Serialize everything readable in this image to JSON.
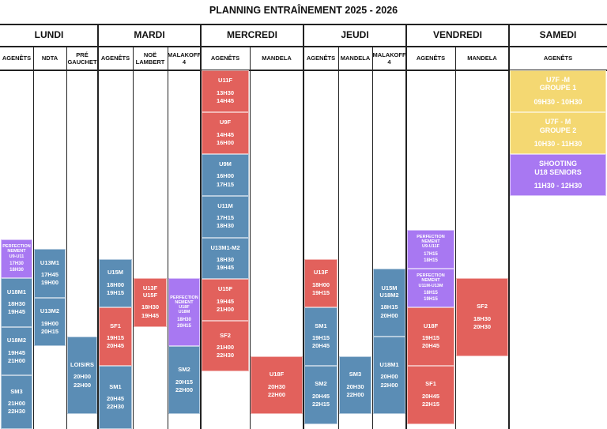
{
  "title": "PLANNING ENTRAÎNEMENT 2025 - 2026",
  "days": [
    "LUNDI",
    "MARDI",
    "MERCREDI",
    "JEUDI",
    "VENDREDI",
    "SAMEDI"
  ],
  "columns": [
    "AGENÊTS",
    "NDTA",
    "PRÉ GAUCHET",
    "AGENÊTS",
    "NOË LAMBERT",
    "MALAKOFF 4",
    "AGENÊTS",
    "MANDELA",
    "AGENÊTS",
    "MANDELA",
    "MALAKOFF 4",
    "AGENÊTS",
    "MANDELA",
    "AGENÊTS"
  ],
  "colors": {
    "blue": "#5b8db5",
    "red": "#e2615c",
    "purple": "#a878f2",
    "yellow": "#f4d872"
  },
  "sessions": [
    {
      "col": 0,
      "color": "purple",
      "label": "PERFECTION\nNEMENT\nU9-U11",
      "times": "17H30\n18H30",
      "start": "17:30",
      "end": "18:30"
    },
    {
      "col": 0,
      "color": "blue",
      "label": "U18M1",
      "times": "18H30\n19H45",
      "start": "18:30",
      "end": "19:45"
    },
    {
      "col": 0,
      "color": "blue",
      "label": "U18M2",
      "times": "19H45\n21H00",
      "start": "19:45",
      "end": "21:00"
    },
    {
      "col": 0,
      "color": "blue",
      "label": "SM3",
      "times": "21H00\n22H30",
      "start": "21:00",
      "end": "22:30"
    },
    {
      "col": 1,
      "color": "blue",
      "label": "U13M1",
      "times": "17H45\n19H00",
      "start": "17:45",
      "end": "19:00"
    },
    {
      "col": 1,
      "color": "blue",
      "label": "U13M2",
      "times": "19H00\n20H15",
      "start": "19:00",
      "end": "20:15"
    },
    {
      "col": 2,
      "color": "blue",
      "label": "LOISIRS",
      "times": "20H00\n22H00",
      "start": "20:00",
      "end": "22:00"
    },
    {
      "col": 3,
      "color": "blue",
      "label": "U15M",
      "times": "18H00\n19H15",
      "start": "18:00",
      "end": "19:15"
    },
    {
      "col": 3,
      "color": "red",
      "label": "SF1",
      "times": "19H15\n20H45",
      "start": "19:15",
      "end": "20:45"
    },
    {
      "col": 3,
      "color": "blue",
      "label": "SM1",
      "times": "20H45\n22H30",
      "start": "20:45",
      "end": "22:30"
    },
    {
      "col": 4,
      "color": "red",
      "label": "U13F\nU15F",
      "times": "18H30\n19H45",
      "start": "18:30",
      "end": "19:45"
    },
    {
      "col": 5,
      "color": "purple",
      "label": "PERFECTION\nNEMENT\nU18F\nU18M",
      "times": "18H30\n20H15",
      "start": "18:30",
      "end": "20:15"
    },
    {
      "col": 5,
      "color": "blue",
      "label": "SM2",
      "times": "20H15\n22H00",
      "start": "20:15",
      "end": "22:00"
    },
    {
      "col": 6,
      "color": "red",
      "label": "U11F",
      "times": "13H30\n14H45",
      "start": "13:30",
      "end": "14:45"
    },
    {
      "col": 6,
      "color": "red",
      "label": "U9F",
      "times": "14H45\n16H00",
      "start": "14:45",
      "end": "16:00"
    },
    {
      "col": 6,
      "color": "blue",
      "label": "U9M",
      "times": "16H00\n17H15",
      "start": "16:00",
      "end": "17:15"
    },
    {
      "col": 6,
      "color": "blue",
      "label": "U11M",
      "times": "17H15\n18H30",
      "start": "17:15",
      "end": "18:30"
    },
    {
      "col": 6,
      "color": "blue",
      "label": "U13M1-M2",
      "times": "18H30\n19H45",
      "start": "18:30",
      "end": "19:45"
    },
    {
      "col": 6,
      "color": "red",
      "label": "U15F",
      "times": "19H45\n21H00",
      "start": "19:45",
      "end": "21:00"
    },
    {
      "col": 6,
      "color": "red",
      "label": "SF2",
      "times": "21H00\n22H30",
      "start": "21:00",
      "end": "22:30"
    },
    {
      "col": 7,
      "color": "red",
      "label": "U18F",
      "times": "20H30\n22H00",
      "start": "20:30",
      "end": "22:00"
    },
    {
      "col": 8,
      "color": "red",
      "label": "U13F",
      "times": "18H00\n19H15",
      "start": "18:00",
      "end": "19:15"
    },
    {
      "col": 8,
      "color": "blue",
      "label": "SM1",
      "times": "19H15\n20H45",
      "start": "19:15",
      "end": "20:45"
    },
    {
      "col": 8,
      "color": "blue",
      "label": "SM2",
      "times": "20H45\n22H15",
      "start": "20:45",
      "end": "22:15"
    },
    {
      "col": 9,
      "color": "blue",
      "label": "SM3",
      "times": "20H30\n22H00",
      "start": "20:30",
      "end": "22:00"
    },
    {
      "col": 10,
      "color": "blue",
      "label": "U15M\nU18M2",
      "times": "18H15\n20H00",
      "start": "18:15",
      "end": "20:00"
    },
    {
      "col": 10,
      "color": "blue",
      "label": "U18M1",
      "times": "20H00\n22H00",
      "start": "20:00",
      "end": "22:00"
    },
    {
      "col": 11,
      "color": "purple",
      "label": "PERFECTION\nNEMENT\nU9-U11F",
      "times": "17H15\n18H15",
      "start": "17:15",
      "end": "18:15"
    },
    {
      "col": 11,
      "color": "purple",
      "label": "PERFECTION\nNEMENT\nU11M-U13M",
      "times": "18H15\n19H15",
      "start": "18:15",
      "end": "19:15"
    },
    {
      "col": 11,
      "color": "red",
      "label": "U18F",
      "times": "19H15\n20H45",
      "start": "19:15",
      "end": "20:45"
    },
    {
      "col": 11,
      "color": "red",
      "label": "SF1",
      "times": "20H45\n22H15",
      "start": "20:45",
      "end": "22:15"
    },
    {
      "col": 12,
      "color": "red",
      "label": "SF2",
      "times": "18H30\n20H30",
      "start": "18:30",
      "end": "20:30"
    },
    {
      "col": 13,
      "color": "yellow",
      "label": "U7F -M\nGROUPE 1",
      "times": "09H30 - 10H30",
      "start": "09:30",
      "end": "10:30"
    },
    {
      "col": 13,
      "color": "yellow",
      "label": "U7F - M\nGROUPE 2",
      "times": "10H30 - 11H30",
      "start": "10:30",
      "end": "11:30"
    },
    {
      "col": 13,
      "color": "purple",
      "label": "SHOOTING\nU18 SENIORS",
      "times": "11H30 - 12H30",
      "start": "11:30",
      "end": "12:30"
    }
  ]
}
